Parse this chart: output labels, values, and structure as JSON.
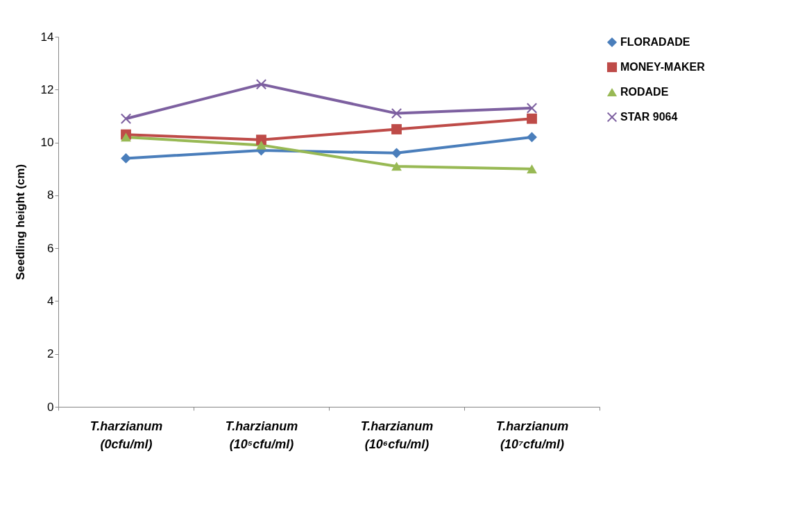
{
  "chart_data": {
    "type": "line",
    "ylabel": "Seedling height (cm)",
    "categories": [
      "T.harzianum (0cfu/ml)",
      "T.harzianum (10⁵cfu/ml)",
      "T.harzianum (10⁶cfu/ml)",
      "T.harzianum (10⁷cfu/ml)"
    ],
    "series": [
      {
        "name": "FLORADADE",
        "color": "#4a7ebb",
        "marker": "diamond",
        "values": [
          9.4,
          9.7,
          9.6,
          10.2
        ]
      },
      {
        "name": "MONEY-MAKER",
        "color": "#be4b48",
        "marker": "square",
        "values": [
          10.3,
          10.1,
          10.5,
          10.9
        ]
      },
      {
        "name": "RODADE",
        "color": "#98b954",
        "marker": "triangle",
        "values": [
          10.2,
          9.9,
          9.1,
          9.0
        ]
      },
      {
        "name": "STAR 9064",
        "color": "#7d60a0",
        "marker": "cross",
        "values": [
          10.9,
          12.2,
          11.1,
          11.3
        ]
      }
    ],
    "ylim": [
      0,
      14
    ],
    "yticks": [
      0,
      2,
      4,
      6,
      8,
      10,
      12,
      14
    ],
    "grid": false,
    "legend": "right",
    "line_style": "solid"
  }
}
